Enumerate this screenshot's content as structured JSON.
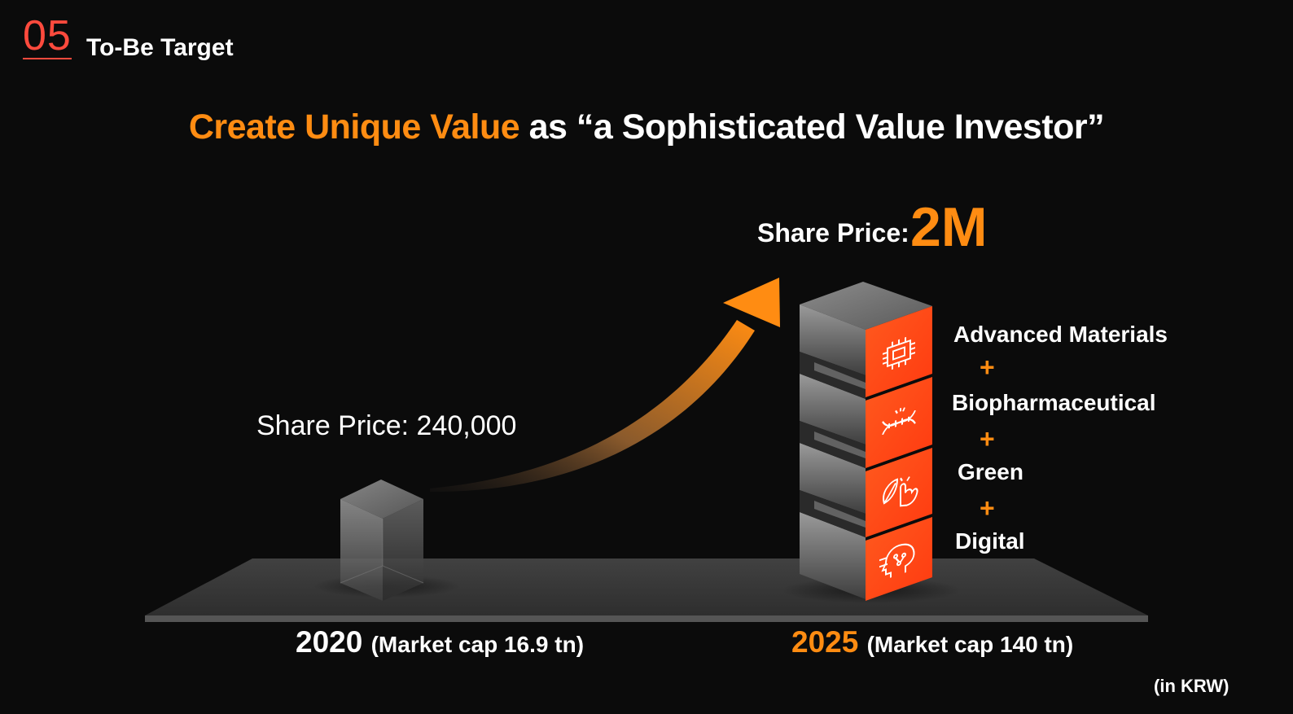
{
  "section": {
    "number": "05",
    "title": "To-Be Target"
  },
  "headline": {
    "highlight": "Create Unique Value",
    "rest": " as “a Sophisticated Value Investor”"
  },
  "left": {
    "share_price_label": "Share Price: 240,000",
    "year": "2020",
    "market_cap": "(Market cap 16.9 tn)"
  },
  "right": {
    "share_price_label": "Share Price:",
    "share_price_value": "2M",
    "year": "2025",
    "market_cap": "(Market cap 140 tn)",
    "segments": [
      {
        "label": "Advanced Materials",
        "icon": "microchip-icon"
      },
      {
        "label": "Biopharmaceutical",
        "icon": "dna-icon"
      },
      {
        "label": "Green",
        "icon": "leaf-hand-icon"
      },
      {
        "label": "Digital",
        "icon": "head-circuit-icon"
      }
    ],
    "plus": "+"
  },
  "unit_note": "(in KRW)",
  "colors": {
    "accent": "#ff8c12",
    "section_number": "#ff4a3d",
    "background": "#0b0b0b",
    "platform": "#3a3a3a"
  }
}
